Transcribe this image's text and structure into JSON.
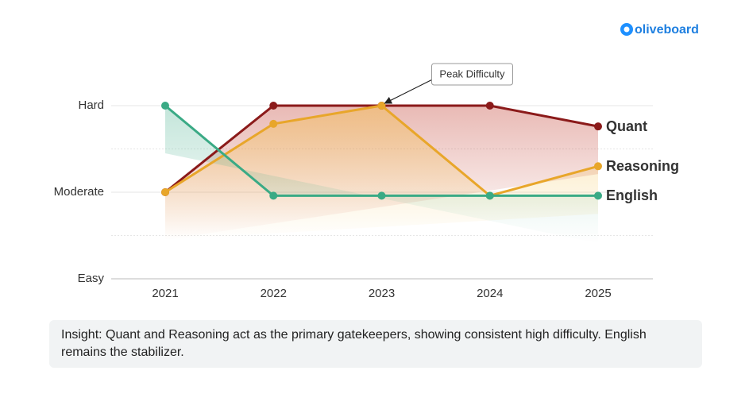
{
  "logo": "oliveboard",
  "chart_data": {
    "type": "line",
    "categories": [
      "2021",
      "2022",
      "2023",
      "2024",
      "2025"
    ],
    "series": [
      {
        "name": "Quant",
        "color": "#8b1a1a",
        "values": [
          2,
          3,
          3,
          3,
          2.76
        ]
      },
      {
        "name": "Reasoning",
        "color": "#e8a62a",
        "values": [
          2,
          2.79,
          3,
          1.96,
          2.3
        ]
      },
      {
        "name": "English",
        "color": "#3aaa85",
        "values": [
          3,
          1.96,
          1.96,
          1.96,
          1.96
        ]
      }
    ],
    "ylim": [
      1,
      3.25
    ],
    "yticks": [
      {
        "value": 1,
        "label": "Easy"
      },
      {
        "value": 2,
        "label": "Moderate"
      },
      {
        "value": 3,
        "label": "Hard"
      }
    ],
    "minor_yticks": [
      1.5,
      2.5
    ],
    "grid": true,
    "annotation": {
      "text": "Peak Difficulty",
      "category": "2023",
      "value": 3
    }
  },
  "insight": "Insight: Quant and Reasoning act as the primary gatekeepers, showing consistent high difficulty. English remains the stabilizer."
}
